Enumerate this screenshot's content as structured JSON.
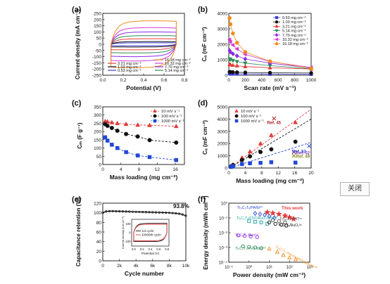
{
  "close_button": {
    "label": "关闭"
  },
  "chart_data": [
    {
      "panel": "(a)",
      "type": "line",
      "xlabel": "Potential (V)",
      "ylabel": "Current density (mA cm⁻²)",
      "xlim": [
        -0.1,
        0.9
      ],
      "ylim": [
        -250,
        250
      ],
      "xticks": [
        "0.0",
        "0.2",
        "0.4",
        "0.6",
        "0.8"
      ],
      "yticks": [
        "-250",
        "-200",
        "-150",
        "-100",
        "-50",
        "0",
        "50",
        "100",
        "150",
        "200",
        "250"
      ],
      "series": [
        {
          "name": "0.53 mg cm⁻²",
          "color": "#3a3ad8",
          "amplitude": 12
        },
        {
          "name": "1.03 mg cm⁻²",
          "color": "#111111",
          "amplitude": 22
        },
        {
          "name": "3.21 mg cm⁻²",
          "color": "#e23b3b",
          "amplitude": 45
        },
        {
          "name": "5.14 mg cm⁻²",
          "color": "#2e8b57",
          "amplitude": 70
        },
        {
          "name": "7.70 mg cm⁻²",
          "color": "#8a2be2",
          "amplitude": 100
        },
        {
          "name": "10.32 mg cm⁻²",
          "color": "#d63ad6",
          "amplitude": 135
        },
        {
          "name": "16.18 mg cm⁻²",
          "color": "#f08a1c",
          "amplitude": 190
        }
      ]
    },
    {
      "panel": "(b)",
      "type": "line",
      "xlabel": "Scan rate (mV s⁻¹)",
      "ylabel": "Cₐ (mF cm⁻²)",
      "xlim": [
        0,
        1000
      ],
      "ylim": [
        0,
        4000
      ],
      "xticks": [
        "0",
        "200",
        "400",
        "600",
        "800",
        "1000"
      ],
      "yticks": [
        "0",
        "1000",
        "2000",
        "3000",
        "4000"
      ],
      "x": [
        10,
        20,
        50,
        100,
        200,
        500,
        1000
      ],
      "series": [
        {
          "name": "0.53 mg cm⁻²",
          "color": "#3a3ad8",
          "marker": "square",
          "values": [
            110,
            105,
            100,
            95,
            88,
            78,
            70
          ]
        },
        {
          "name": "1.03 mg cm⁻²",
          "color": "#111111",
          "marker": "circle",
          "values": [
            220,
            212,
            200,
            190,
            178,
            160,
            140
          ]
        },
        {
          "name": "3.21 mg cm⁻²",
          "color": "#e23b3b",
          "marker": "triangle",
          "values": [
            700,
            680,
            650,
            610,
            560,
            480,
            400
          ]
        },
        {
          "name": "5.14 mg cm⁻²",
          "color": "#2e8b57",
          "marker": "triangle-down",
          "values": [
            1050,
            1000,
            950,
            880,
            780,
            620,
            420
          ]
        },
        {
          "name": "7.70 mg cm⁻²",
          "color": "#8a2be2",
          "marker": "diamond",
          "values": [
            1600,
            1500,
            1380,
            1250,
            1050,
            780,
            470
          ]
        },
        {
          "name": "10.32 mg cm⁻²",
          "color": "#d63ad6",
          "marker": "triangle-left",
          "values": [
            2300,
            2150,
            1950,
            1700,
            1350,
            880,
            500
          ]
        },
        {
          "name": "16.18 mg cm⁻²",
          "color": "#f08a1c",
          "marker": "hexagon",
          "values": [
            3700,
            3300,
            2700,
            2100,
            1500,
            900,
            440
          ]
        }
      ]
    },
    {
      "panel": "(c)",
      "type": "scatter",
      "xlabel": "Mass loading (mg cm⁻²)",
      "ylabel": "Cₘ (F g⁻¹)",
      "xlim": [
        0,
        18
      ],
      "ylim": [
        0,
        350
      ],
      "xticks": [
        "0",
        "4",
        "8",
        "12",
        "16"
      ],
      "yticks": [
        "0",
        "50",
        "100",
        "150",
        "200",
        "250",
        "300",
        "350"
      ],
      "x": [
        0.53,
        1.03,
        2.0,
        3.21,
        5.14,
        7.7,
        10.32,
        16.18
      ],
      "series": [
        {
          "name": "10 mV s⁻¹",
          "color": "#e23b3b",
          "marker": "triangle",
          "values": [
            262,
            260,
            255,
            250,
            245,
            240,
            238,
            232
          ]
        },
        {
          "name": "100 mV s⁻¹",
          "color": "#111111",
          "marker": "circle",
          "values": [
            245,
            235,
            222,
            205,
            185,
            170,
            148,
            133
          ]
        },
        {
          "name": "1000 mV s⁻¹",
          "color": "#2046d8",
          "marker": "square",
          "values": [
            165,
            145,
            120,
            100,
            75,
            55,
            45,
            27
          ]
        }
      ]
    },
    {
      "panel": "(d)",
      "type": "scatter",
      "xlabel": "Mass loading (mg cm⁻²)",
      "ylabel": "Cₐ (mF cm⁻²)",
      "xlim": [
        0,
        20
      ],
      "ylim": [
        0,
        5000
      ],
      "xticks": [
        "0",
        "4",
        "8",
        "12",
        "16",
        "20"
      ],
      "yticks": [
        "0",
        "1000",
        "2000",
        "3000",
        "4000",
        "5000"
      ],
      "x": [
        0.53,
        1.03,
        3.21,
        5.14,
        7.7,
        10.32,
        16.18
      ],
      "series": [
        {
          "name": "10 mV s⁻¹",
          "color": "#e23b3b",
          "marker": "triangle",
          "values": [
            140,
            270,
            840,
            1340,
            2000,
            2680,
            3730
          ]
        },
        {
          "name": "100 mV s⁻¹",
          "color": "#111111",
          "marker": "circle",
          "values": [
            130,
            240,
            660,
            950,
            1310,
            1530,
            2150
          ]
        },
        {
          "name": "1000 mV s⁻¹",
          "color": "#2046d8",
          "marker": "square",
          "values": [
            87,
            150,
            320,
            385,
            420,
            470,
            440
          ]
        }
      ],
      "references": [
        {
          "label": "Ref. 45",
          "color": "#b22222",
          "x": 11.0,
          "y": 4050
        },
        {
          "label": "Ref. 53",
          "color": "#2046d8",
          "x": 19.5,
          "y": 1800
        },
        {
          "label": "Ref. 52",
          "color": "#7a3aa8",
          "x": 15.8,
          "y": 1300
        },
        {
          "label": "Ref. 49",
          "color": "#8a8a1a",
          "x": 15.8,
          "y": 1000
        }
      ]
    },
    {
      "panel": "(e)",
      "type": "line",
      "xlabel": "Cycle number",
      "ylabel": "Capacitance retention (%)",
      "xlim": [
        0,
        10000
      ],
      "ylim": [
        0,
        120
      ],
      "xticks": [
        "0",
        "2k",
        "4k",
        "6k",
        "8k",
        "10k"
      ],
      "yticks": [
        "0",
        "20",
        "40",
        "60",
        "80",
        "100",
        "120"
      ],
      "annotation": "93.8%",
      "series": [
        {
          "name": "retention",
          "color": "#111111",
          "x": [
            0,
            200,
            500,
            1000,
            2000,
            3000,
            4000,
            5000,
            6000,
            7000,
            8000,
            9000,
            9500,
            10000
          ],
          "values": [
            100,
            102,
            103,
            103.5,
            103,
            102.5,
            102,
            101.5,
            101,
            100.5,
            100,
            98.5,
            97,
            93.8
          ]
        }
      ],
      "inset": {
        "xlabel": "Potential (V)",
        "ylabel": "Current density (mA cm⁻²)",
        "xticks": [
          "0.0",
          "0.2",
          "0.4",
          "0.6",
          "0.8"
        ],
        "yticks": [
          "-100",
          "0",
          "100"
        ],
        "series": [
          {
            "name": "1st cycle",
            "color": "#111111"
          },
          {
            "name": "10000th cycle",
            "color": "#e23b3b"
          }
        ]
      }
    },
    {
      "panel": "(f)",
      "type": "scatter",
      "xlabel": "Power density (mW cm⁻²)",
      "ylabel": "Energy density (mWh cm⁻²)",
      "xscale": "log",
      "yscale": "log",
      "xlim": [
        0.1,
        1000
      ],
      "ylim": [
        0.0001,
        1
      ],
      "xticks": [
        "10⁻¹",
        "10⁰",
        "10¹",
        "10²",
        "10³"
      ],
      "yticks": [
        "10⁻⁴",
        "10⁻³",
        "10⁻²",
        "10⁻¹",
        "10⁰"
      ],
      "series": [
        {
          "name": "This work",
          "color": "#e23b3b",
          "marker": "star",
          "x": [
            8,
            15,
            30,
            60,
            100,
            160
          ],
          "values": [
            0.24,
            0.21,
            0.18,
            0.14,
            0.11,
            0.085
          ]
        },
        {
          "name": "Ti₃C₂Tₓ/PANI²⁴",
          "color": "#2046d8",
          "marker": "diamond-open",
          "x": [
            2,
            3.5,
            6,
            10,
            18
          ],
          "values": [
            0.2,
            0.18,
            0.16,
            0.13,
            0.1
          ]
        },
        {
          "name": "Ti₃C₂Tₓ/CNT/RuO₂/CNT³⁷",
          "color": "#1aa0a0",
          "marker": "square-open",
          "x": [
            1,
            2,
            4,
            8
          ],
          "values": [
            0.06,
            0.055,
            0.05,
            0.04
          ]
        },
        {
          "name": "Ti₃C₂Tₓ fiber⁴⁶",
          "color": "#8a2be2",
          "marker": "circle-open",
          "x": [
            0.3,
            0.6,
            1.2,
            2.5
          ],
          "values": [
            0.0065,
            0.006,
            0.0055,
            0.005
          ]
        },
        {
          "name": "Ti₃C₂Tₓ/rGO fiber⁵³",
          "color": "#2e8b57",
          "marker": "circle-open",
          "x": [
            0.5,
            1,
            2,
            4
          ],
          "values": [
            0.0012,
            0.0011,
            0.001,
            0.0009
          ]
        },
        {
          "name": "Ti₃C₂Tₓ microsupercapacitor³⁰",
          "color": "#f08a1c",
          "marker": "triangle-open",
          "x": [
            10,
            25,
            50,
            100,
            200
          ],
          "values": [
            0.0008,
            0.0005,
            0.0003,
            0.0002,
            0.00015
          ]
        },
        {
          "name": "Ti₃C₂Tₓ/RuO₂³⁸",
          "color": "#111111",
          "marker": "circle-open",
          "x": [
            10,
            20,
            40,
            70
          ],
          "values": [
            0.05,
            0.04,
            0.035,
            0.03
          ]
        },
        {
          "name": "Ti₃C₂Tₓ/CNT³⁶",
          "color": "#444444",
          "marker": "circle-open",
          "x": [
            15,
            30,
            60
          ],
          "values": [
            0.07,
            0.06,
            0.05
          ]
        }
      ]
    }
  ]
}
